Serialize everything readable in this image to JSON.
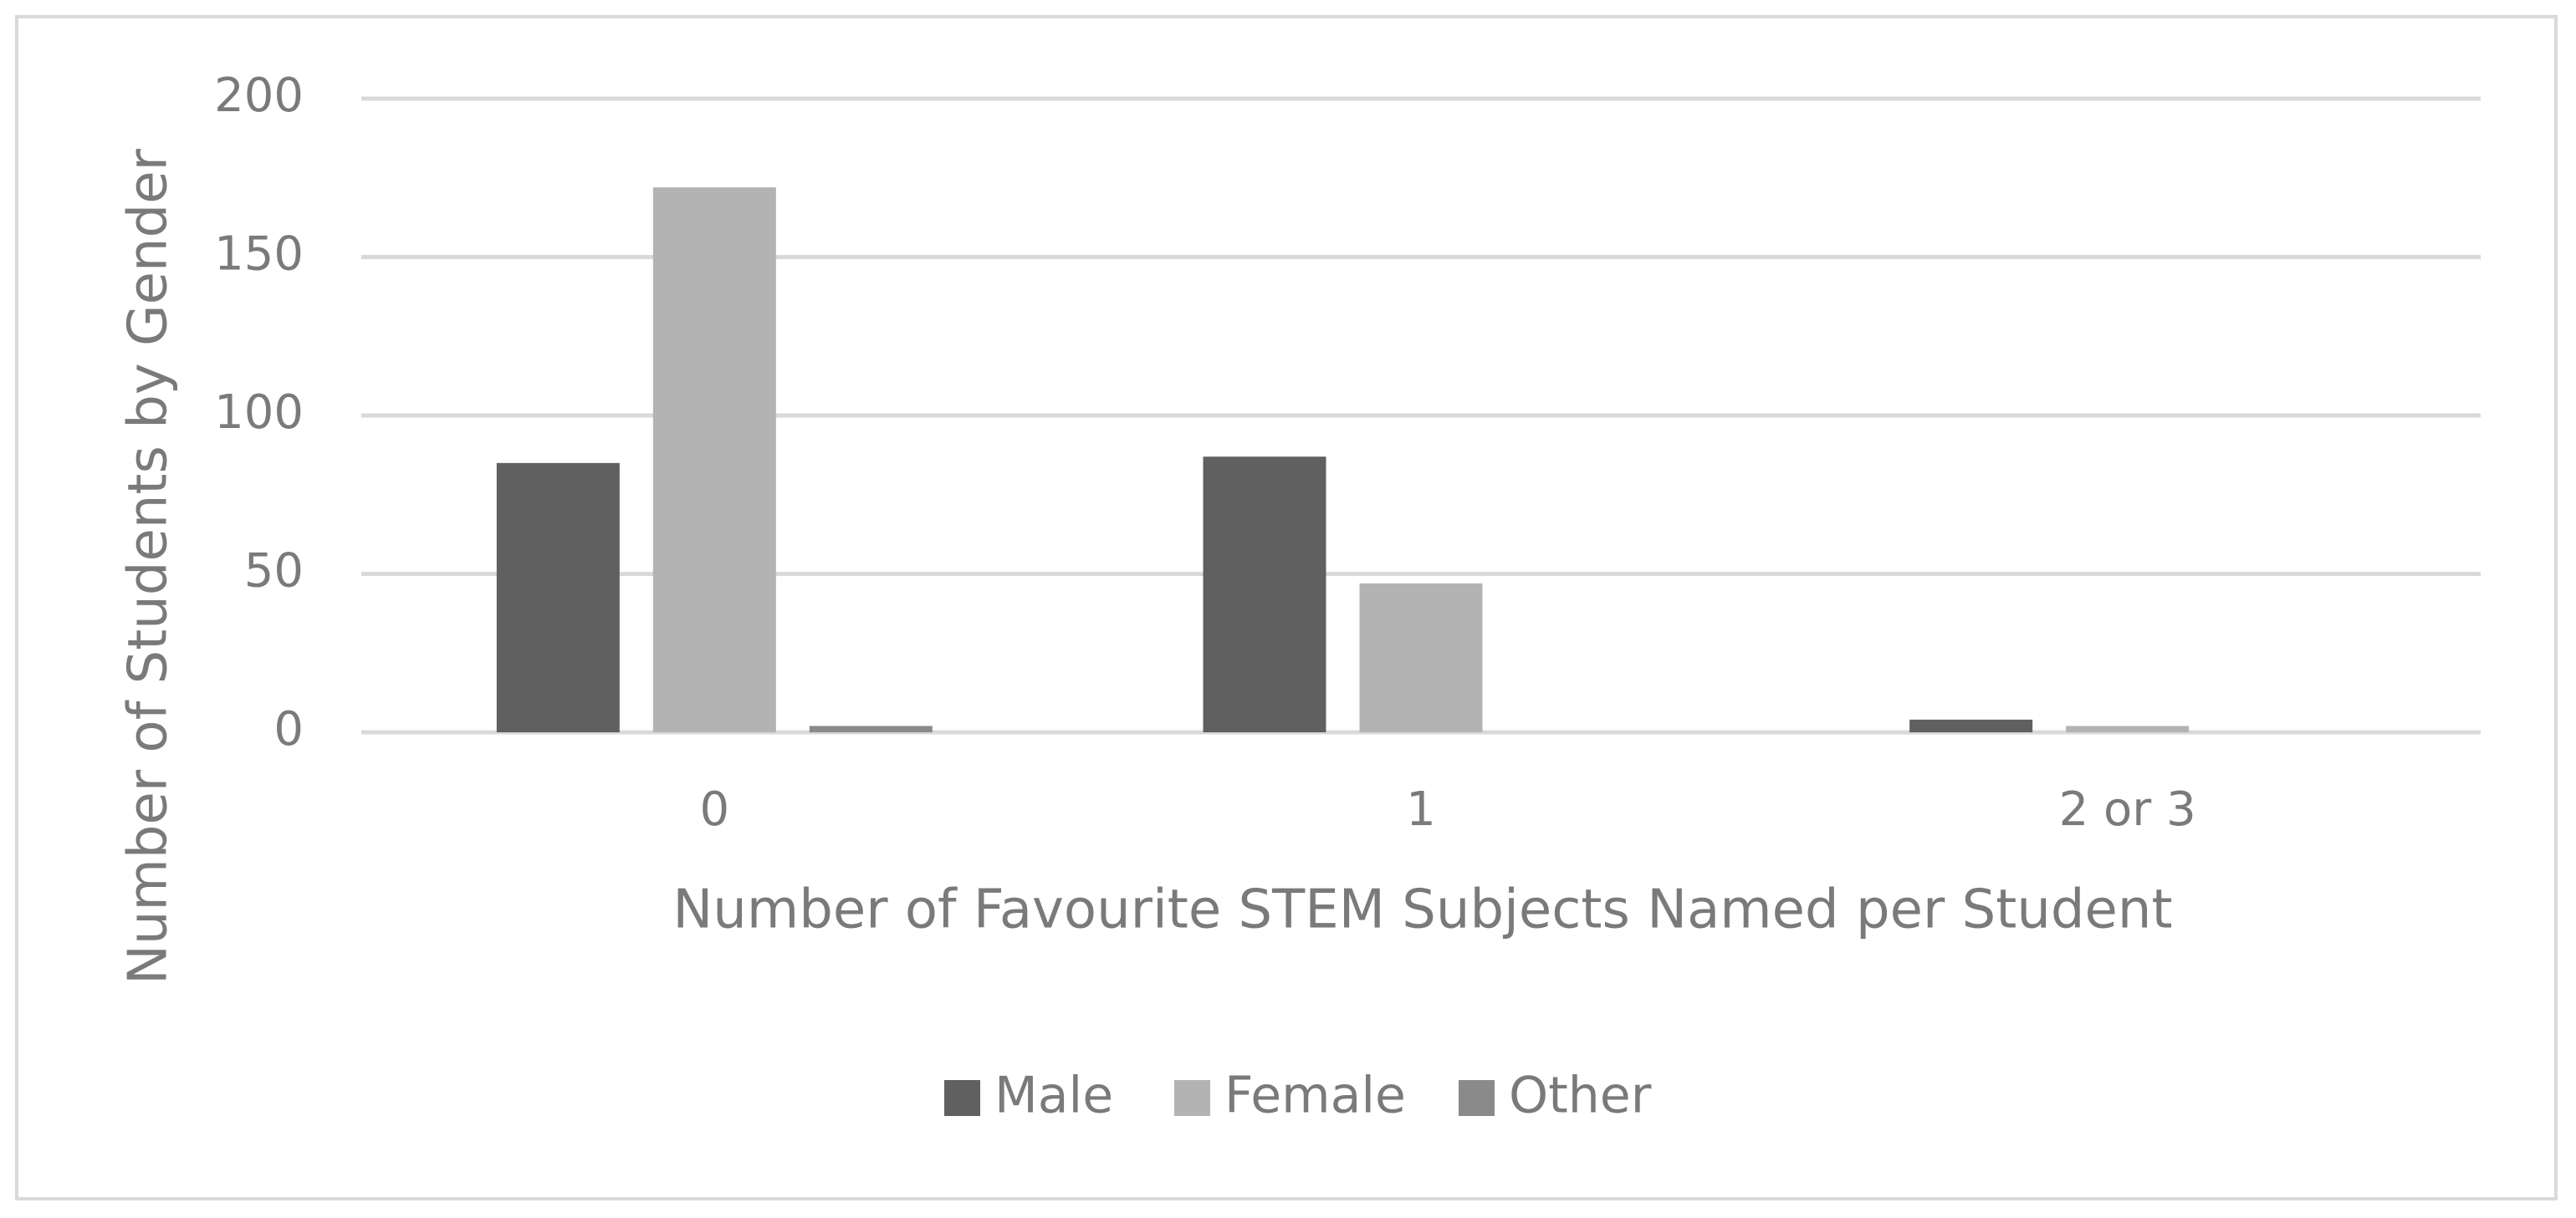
{
  "chart_data": {
    "type": "bar",
    "x_label": "Number of Favourite STEM Subjects Named per Student",
    "y_label": "Number of  Students by Gender",
    "categories": [
      "0",
      "1",
      "2 or 3"
    ],
    "series": [
      {
        "name": "Male",
        "color": "#606060",
        "values": [
          85,
          87,
          4
        ]
      },
      {
        "name": "Female",
        "color": "#b3b3b3",
        "values": [
          172,
          47,
          2
        ]
      },
      {
        "name": "Other",
        "color": "#8a8a8a",
        "values": [
          2,
          0,
          0
        ]
      }
    ],
    "ylim": [
      0,
      200
    ],
    "yticks": [
      0,
      50,
      100,
      150,
      200
    ],
    "grid": true,
    "legend": "bottom"
  }
}
